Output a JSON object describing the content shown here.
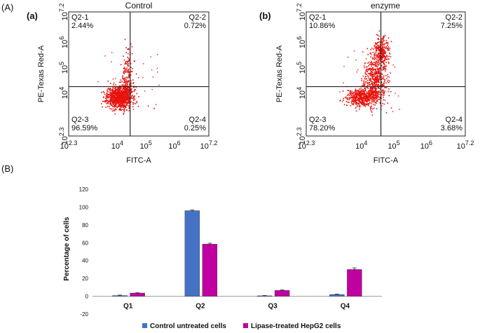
{
  "panel_labels": {
    "a": "(A)",
    "b": "(B)"
  },
  "chart_data": [
    {
      "type": "scatter",
      "id": "control",
      "subplot_label": "(a)",
      "title": "Control",
      "xlabel": "FITC-A",
      "ylabel": "PE-Texas Red-A",
      "xlim": [
        2.3,
        7.2
      ],
      "ylim": [
        2.3,
        7.2
      ],
      "xtick_labels": [
        "10^2.3",
        "10^4",
        "10^5",
        "10^6",
        "10^7.2"
      ],
      "ytick_labels": [
        "10^2.3",
        "10^4",
        "10^5",
        "10^6",
        "10^7.2"
      ],
      "gate": {
        "x": 4.45,
        "y": 4.25
      },
      "quadrants": [
        {
          "name": "Q2-1",
          "value": "2.44%"
        },
        {
          "name": "Q2-2",
          "value": "0.72%"
        },
        {
          "name": "Q2-3",
          "value": "96.59%"
        },
        {
          "name": "Q2-4",
          "value": "0.25%"
        }
      ],
      "point_color": "#e8120c",
      "clusters": [
        {
          "cx": 4.05,
          "cy": 3.85,
          "sx": 0.22,
          "sy": 0.22,
          "n": 900
        },
        {
          "cx": 4.3,
          "cy": 4.2,
          "sx": 0.12,
          "sy": 0.25,
          "n": 160
        },
        {
          "cx": 4.35,
          "cy": 5.0,
          "sx": 0.1,
          "sy": 0.45,
          "n": 80
        }
      ]
    },
    {
      "type": "scatter",
      "id": "enzyme",
      "subplot_label": "(b)",
      "title": "enzyme",
      "xlabel": "FITC-A",
      "ylabel": "PE-Texas Red-A",
      "xlim": [
        2.3,
        7.2
      ],
      "ylim": [
        2.3,
        7.2
      ],
      "xtick_labels": [
        "10^2.3",
        "10^4",
        "10^5",
        "10^6",
        "10^7.2"
      ],
      "ytick_labels": [
        "10^2.3",
        "10^4",
        "10^5",
        "10^6",
        "10^7.2"
      ],
      "gate": {
        "x": 4.6,
        "y": 4.25
      },
      "quadrants": [
        {
          "name": "Q2-1",
          "value": "10.86%"
        },
        {
          "name": "Q2-2",
          "value": "7.25%"
        },
        {
          "name": "Q2-3",
          "value": "78.20%"
        },
        {
          "name": "Q2-4",
          "value": "3.68%"
        }
      ],
      "point_color": "#e8120c",
      "clusters": [
        {
          "cx": 4.0,
          "cy": 3.85,
          "sx": 0.25,
          "sy": 0.18,
          "n": 500
        },
        {
          "cx": 4.4,
          "cy": 4.5,
          "sx": 0.18,
          "sy": 0.45,
          "n": 500
        },
        {
          "cx": 4.6,
          "cy": 5.6,
          "sx": 0.12,
          "sy": 0.3,
          "n": 300
        }
      ]
    },
    {
      "type": "bar",
      "id": "quadrant-bars",
      "categories": [
        "Q1",
        "Q2",
        "Q3",
        "Q4"
      ],
      "ylabel": "Percentage of cells",
      "ylim": [
        -20,
        120
      ],
      "yticks": [
        -20,
        0,
        20,
        40,
        60,
        80,
        100,
        120
      ],
      "series": [
        {
          "name": "Control untreated cells",
          "color": "#4472c4",
          "values": [
            0.8,
            96,
            0.5,
            2.0
          ],
          "errors": [
            0.5,
            0.6,
            0.3,
            0.4
          ]
        },
        {
          "name": "Lipase-treated HepG2 cells",
          "color": "#c000a0",
          "values": [
            3.6,
            58.5,
            6.5,
            30
          ],
          "errors": [
            0.3,
            1.0,
            0.5,
            1.8
          ]
        }
      ]
    }
  ]
}
